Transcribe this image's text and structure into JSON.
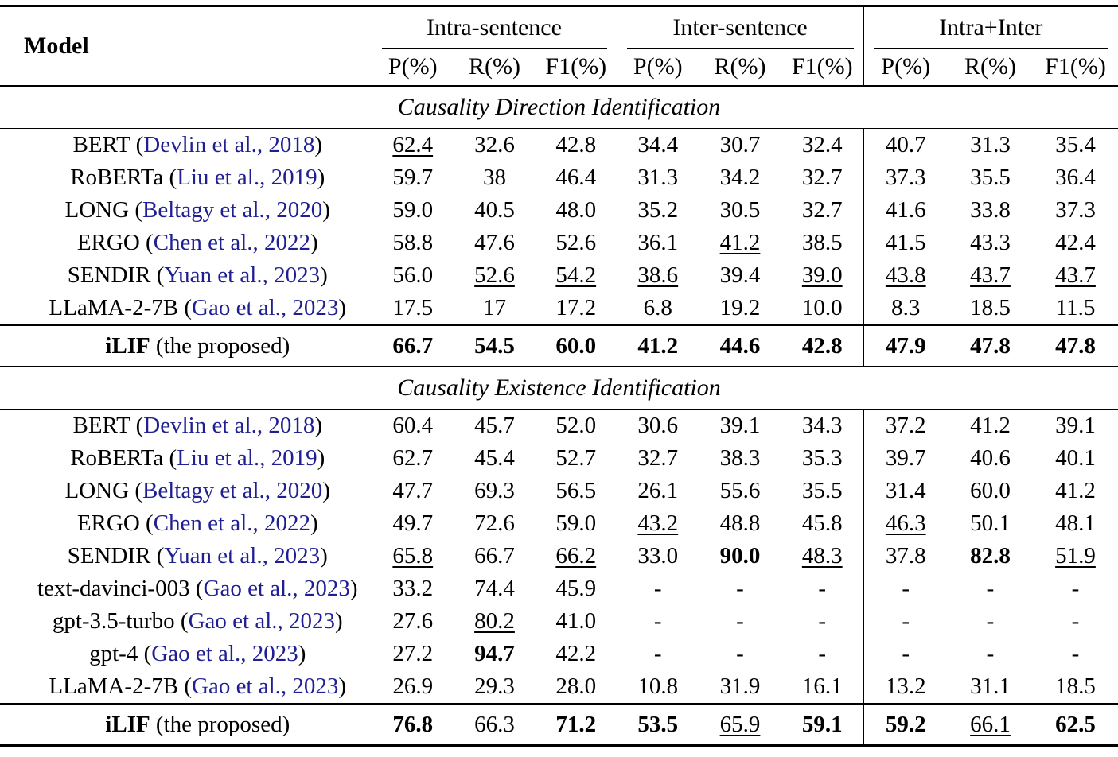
{
  "punctuation": {
    "open": " (",
    "close": ")"
  },
  "accent": {
    "citation_color": "#1f1f93"
  },
  "header": {
    "model_label": "Model",
    "groups": [
      {
        "label": "Intra-sentence"
      },
      {
        "label": "Inter-sentence"
      },
      {
        "label": "Intra+Inter"
      }
    ],
    "metric_labels": [
      "P(%)",
      "R(%)",
      "F1(%)"
    ]
  },
  "sections": [
    {
      "title": "Causality Direction Identification",
      "rows": [
        {
          "name": "BERT",
          "citation": "Devlin et al., 2018",
          "cells": [
            {
              "v": "62.4",
              "u": 1
            },
            {
              "v": "32.6"
            },
            {
              "v": "42.8"
            },
            {
              "v": "34.4"
            },
            {
              "v": "30.7"
            },
            {
              "v": "32.4"
            },
            {
              "v": "40.7"
            },
            {
              "v": "31.3"
            },
            {
              "v": "35.4"
            }
          ]
        },
        {
          "name": "RoBERTa",
          "citation": "Liu et al., 2019",
          "cells": [
            {
              "v": "59.7"
            },
            {
              "v": "38"
            },
            {
              "v": "46.4"
            },
            {
              "v": "31.3"
            },
            {
              "v": "34.2"
            },
            {
              "v": "32.7"
            },
            {
              "v": "37.3"
            },
            {
              "v": "35.5"
            },
            {
              "v": "36.4"
            }
          ]
        },
        {
          "name": "LONG",
          "citation": "Beltagy et al., 2020",
          "cells": [
            {
              "v": "59.0"
            },
            {
              "v": "40.5"
            },
            {
              "v": "48.0"
            },
            {
              "v": "35.2"
            },
            {
              "v": "30.5"
            },
            {
              "v": "32.7"
            },
            {
              "v": "41.6"
            },
            {
              "v": "33.8"
            },
            {
              "v": "37.3"
            }
          ]
        },
        {
          "name": "ERGO",
          "citation": "Chen et al., 2022",
          "cells": [
            {
              "v": "58.8"
            },
            {
              "v": "47.6"
            },
            {
              "v": "52.6"
            },
            {
              "v": "36.1"
            },
            {
              "v": "41.2",
              "u": 1
            },
            {
              "v": "38.5"
            },
            {
              "v": "41.5"
            },
            {
              "v": "43.3"
            },
            {
              "v": "42.4"
            }
          ]
        },
        {
          "name": "SENDIR",
          "citation": "Yuan et al., 2023",
          "cells": [
            {
              "v": "56.0"
            },
            {
              "v": "52.6",
              "u": 1
            },
            {
              "v": "54.2",
              "u": 1
            },
            {
              "v": "38.6",
              "u": 1
            },
            {
              "v": "39.4"
            },
            {
              "v": "39.0",
              "u": 1
            },
            {
              "v": "43.8",
              "u": 1
            },
            {
              "v": "43.7",
              "u": 1
            },
            {
              "v": "43.7",
              "u": 1
            }
          ]
        },
        {
          "name": "LLaMA-2-7B",
          "citation": "Gao et al., 2023",
          "cells": [
            {
              "v": "17.5"
            },
            {
              "v": "17"
            },
            {
              "v": "17.2"
            },
            {
              "v": "6.8"
            },
            {
              "v": "19.2"
            },
            {
              "v": "10.0"
            },
            {
              "v": "8.3"
            },
            {
              "v": "18.5"
            },
            {
              "v": "11.5"
            }
          ]
        }
      ],
      "proposed": {
        "name": "iLIF",
        "suffix": " (the proposed)",
        "cells": [
          {
            "v": "66.7",
            "b": 1
          },
          {
            "v": "54.5",
            "b": 1
          },
          {
            "v": "60.0",
            "b": 1
          },
          {
            "v": "41.2",
            "b": 1
          },
          {
            "v": "44.6",
            "b": 1
          },
          {
            "v": "42.8",
            "b": 1
          },
          {
            "v": "47.9",
            "b": 1
          },
          {
            "v": "47.8",
            "b": 1
          },
          {
            "v": "47.8",
            "b": 1
          }
        ]
      }
    },
    {
      "title": "Causality Existence Identification",
      "rows": [
        {
          "name": "BERT",
          "citation": "Devlin et al., 2018",
          "cells": [
            {
              "v": "60.4"
            },
            {
              "v": "45.7"
            },
            {
              "v": "52.0"
            },
            {
              "v": "30.6"
            },
            {
              "v": "39.1"
            },
            {
              "v": "34.3"
            },
            {
              "v": "37.2"
            },
            {
              "v": "41.2"
            },
            {
              "v": "39.1"
            }
          ]
        },
        {
          "name": "RoBERTa",
          "citation": "Liu et al., 2019",
          "cells": [
            {
              "v": "62.7"
            },
            {
              "v": "45.4"
            },
            {
              "v": "52.7"
            },
            {
              "v": "32.7"
            },
            {
              "v": "38.3"
            },
            {
              "v": "35.3"
            },
            {
              "v": "39.7"
            },
            {
              "v": "40.6"
            },
            {
              "v": "40.1"
            }
          ]
        },
        {
          "name": "LONG",
          "citation": "Beltagy et al., 2020",
          "cells": [
            {
              "v": "47.7"
            },
            {
              "v": "69.3"
            },
            {
              "v": "56.5"
            },
            {
              "v": "26.1"
            },
            {
              "v": "55.6"
            },
            {
              "v": "35.5"
            },
            {
              "v": "31.4"
            },
            {
              "v": "60.0"
            },
            {
              "v": "41.2"
            }
          ]
        },
        {
          "name": "ERGO",
          "citation": "Chen et al., 2022",
          "cells": [
            {
              "v": "49.7"
            },
            {
              "v": "72.6"
            },
            {
              "v": "59.0"
            },
            {
              "v": "43.2",
              "u": 1
            },
            {
              "v": "48.8"
            },
            {
              "v": "45.8"
            },
            {
              "v": "46.3",
              "u": 1
            },
            {
              "v": "50.1"
            },
            {
              "v": "48.1"
            }
          ]
        },
        {
          "name": "SENDIR",
          "citation": "Yuan et al., 2023",
          "cells": [
            {
              "v": "65.8",
              "u": 1
            },
            {
              "v": "66.7"
            },
            {
              "v": "66.2",
              "u": 1
            },
            {
              "v": "33.0"
            },
            {
              "v": "90.0",
              "b": 1
            },
            {
              "v": "48.3",
              "u": 1
            },
            {
              "v": "37.8"
            },
            {
              "v": "82.8",
              "b": 1
            },
            {
              "v": "51.9",
              "u": 1
            }
          ]
        },
        {
          "name": "text-davinci-003",
          "citation": "Gao et al., 2023",
          "cells": [
            {
              "v": "33.2"
            },
            {
              "v": "74.4"
            },
            {
              "v": "45.9"
            },
            {
              "v": "-"
            },
            {
              "v": "-"
            },
            {
              "v": "-"
            },
            {
              "v": "-"
            },
            {
              "v": "-"
            },
            {
              "v": "-"
            }
          ]
        },
        {
          "name": "gpt-3.5-turbo",
          "citation": "Gao et al., 2023",
          "cells": [
            {
              "v": "27.6"
            },
            {
              "v": "80.2",
              "u": 1
            },
            {
              "v": "41.0"
            },
            {
              "v": "-"
            },
            {
              "v": "-"
            },
            {
              "v": "-"
            },
            {
              "v": "-"
            },
            {
              "v": "-"
            },
            {
              "v": "-"
            }
          ]
        },
        {
          "name": "gpt-4",
          "citation": "Gao et al., 2023",
          "cells": [
            {
              "v": "27.2"
            },
            {
              "v": "94.7",
              "b": 1
            },
            {
              "v": "42.2"
            },
            {
              "v": "-"
            },
            {
              "v": "-"
            },
            {
              "v": "-"
            },
            {
              "v": "-"
            },
            {
              "v": "-"
            },
            {
              "v": "-"
            }
          ]
        },
        {
          "name": "LLaMA-2-7B",
          "citation": "Gao et al., 2023",
          "cells": [
            {
              "v": "26.9"
            },
            {
              "v": "29.3"
            },
            {
              "v": "28.0"
            },
            {
              "v": "10.8"
            },
            {
              "v": "31.9"
            },
            {
              "v": "16.1"
            },
            {
              "v": "13.2"
            },
            {
              "v": "31.1"
            },
            {
              "v": "18.5"
            }
          ]
        }
      ],
      "proposed": {
        "name": "iLIF",
        "suffix": " (the proposed)",
        "cells": [
          {
            "v": "76.8",
            "b": 1
          },
          {
            "v": "66.3"
          },
          {
            "v": "71.2",
            "b": 1
          },
          {
            "v": "53.5",
            "b": 1
          },
          {
            "v": "65.9",
            "u": 1
          },
          {
            "v": "59.1",
            "b": 1
          },
          {
            "v": "59.2",
            "b": 1
          },
          {
            "v": "66.1",
            "u": 1
          },
          {
            "v": "62.5",
            "b": 1
          }
        ]
      }
    }
  ]
}
